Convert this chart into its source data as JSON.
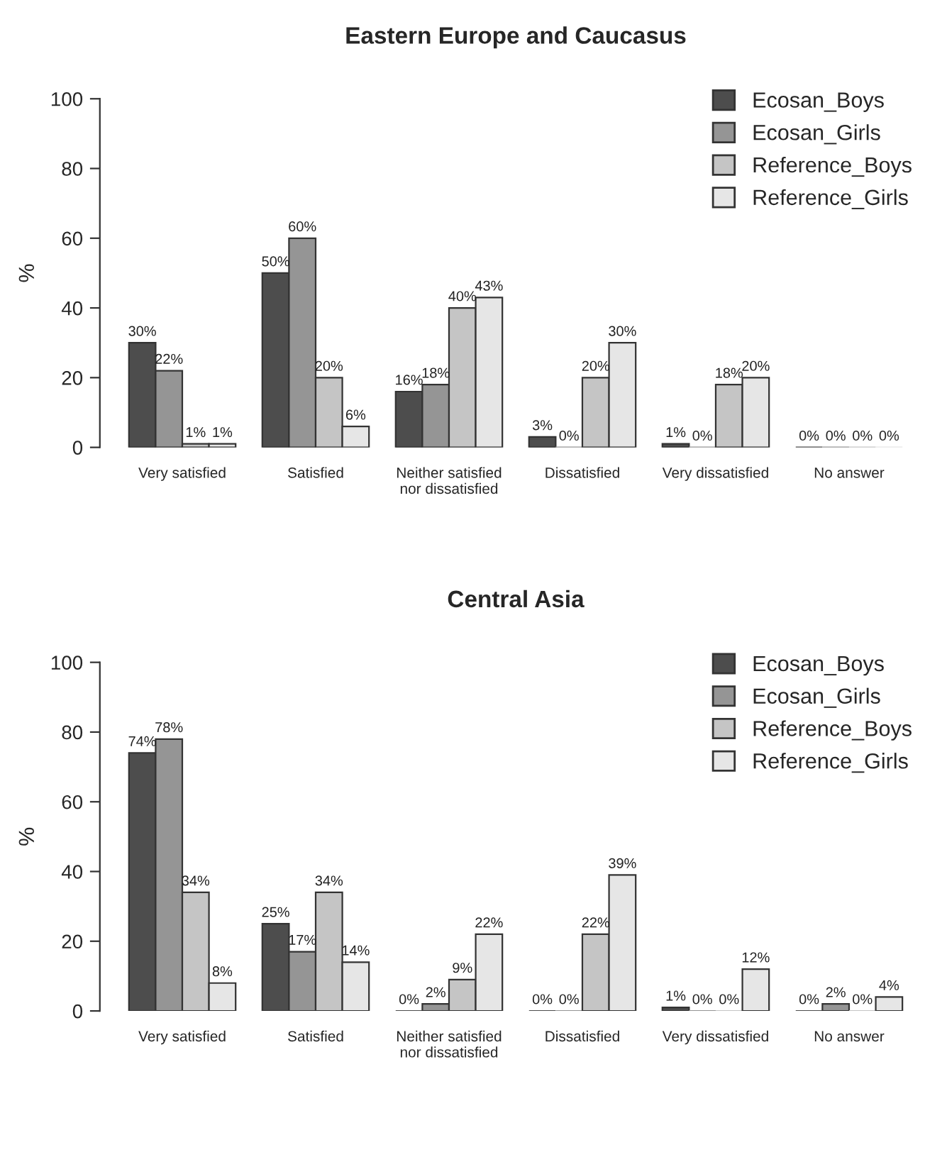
{
  "chart_data": [
    {
      "type": "bar",
      "title": "Eastern Europe and Caucasus",
      "ylabel": "%",
      "categories": [
        "Very satisfied",
        "Satisfied",
        "Neither satisfied\nnor dissatisfied",
        "Dissatisfied",
        "Very dissatisfied",
        "No answer"
      ],
      "ylim": [
        0,
        100
      ],
      "yticks": [
        0,
        20,
        40,
        60,
        80,
        100
      ],
      "legend": "top right",
      "grid": false,
      "series": [
        {
          "name": "Ecosan_Boys",
          "color": "#4d4d4d",
          "values": [
            30,
            50,
            16,
            3,
            1,
            0
          ],
          "value_labels": [
            "30%",
            "50%",
            "16%",
            "3%",
            "1%",
            "0%"
          ]
        },
        {
          "name": "Ecosan_Girls",
          "color": "#959595",
          "values": [
            22,
            60,
            18,
            0,
            0,
            0
          ],
          "value_labels": [
            "22%",
            "60%",
            "18%",
            "0%",
            "0%",
            "0%"
          ]
        },
        {
          "name": "Reference_Boys",
          "color": "#c5c5c5",
          "values": [
            1,
            20,
            40,
            20,
            18,
            0
          ],
          "value_labels": [
            "1%",
            "20%",
            "40%",
            "20%",
            "18%",
            "0%"
          ]
        },
        {
          "name": "Reference_Girls",
          "color": "#e6e6e6",
          "values": [
            1,
            6,
            43,
            30,
            20,
            0
          ],
          "value_labels": [
            "1%",
            "6%",
            "43%",
            "30%",
            "20%",
            "0%"
          ]
        }
      ]
    },
    {
      "type": "bar",
      "title": "Central Asia",
      "ylabel": "%",
      "categories": [
        "Very satisfied",
        "Satisfied",
        "Neither satisfied\nnor dissatisfied",
        "Dissatisfied",
        "Very dissatisfied",
        "No answer"
      ],
      "ylim": [
        0,
        100
      ],
      "yticks": [
        0,
        20,
        40,
        60,
        80,
        100
      ],
      "legend": "top right",
      "grid": false,
      "series": [
        {
          "name": "Ecosan_Boys",
          "color": "#4d4d4d",
          "values": [
            74,
            25,
            0,
            0,
            1,
            0
          ],
          "value_labels": [
            "74%",
            "25%",
            "0%",
            "0%",
            "1%",
            "0%"
          ]
        },
        {
          "name": "Ecosan_Girls",
          "color": "#959595",
          "values": [
            78,
            17,
            2,
            0,
            0,
            2
          ],
          "value_labels": [
            "78%",
            "17%",
            "2%",
            "0%",
            "0%",
            "2%"
          ]
        },
        {
          "name": "Reference_Boys",
          "color": "#c5c5c5",
          "values": [
            34,
            34,
            9,
            22,
            0,
            0
          ],
          "value_labels": [
            "34%",
            "34%",
            "9%",
            "22%",
            "0%",
            "0%"
          ]
        },
        {
          "name": "Reference_Girls",
          "color": "#e6e6e6",
          "values": [
            8,
            14,
            22,
            39,
            12,
            4
          ],
          "value_labels": [
            "8%",
            "14%",
            "22%",
            "39%",
            "12%",
            "4%"
          ]
        }
      ]
    }
  ]
}
